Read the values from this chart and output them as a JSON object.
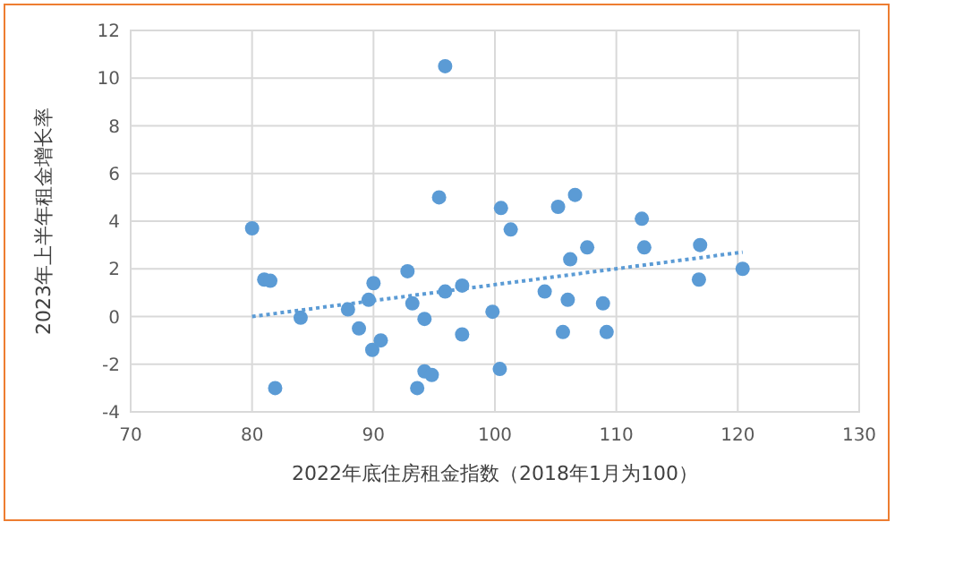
{
  "chart_data": {
    "type": "scatter",
    "xlabel": "2022年底住房租金指数（2018年1月为100）",
    "ylabel": "2023年上半年租金增长率",
    "xlim": [
      70,
      130
    ],
    "xticks": [
      70,
      80,
      90,
      100,
      110,
      120,
      130
    ],
    "ylim": [
      -4,
      12
    ],
    "yticks": [
      -4,
      -2,
      0,
      2,
      4,
      6,
      8,
      10,
      12
    ],
    "grid": true,
    "marker": "circle",
    "series": [
      {
        "type": "scatter",
        "color": "#5b9bd5",
        "x": [
          80.0,
          81.0,
          81.5,
          81.9,
          84.0,
          87.9,
          88.8,
          89.6,
          90.0,
          89.9,
          90.6,
          92.8,
          93.2,
          94.2,
          94.2,
          94.8,
          93.6,
          95.4,
          95.9,
          95.9,
          97.3,
          97.3,
          99.8,
          100.4,
          100.5,
          101.3,
          104.1,
          105.2,
          106.6,
          107.6,
          106.2,
          106.0,
          108.9,
          105.6,
          109.2,
          112.1,
          112.3,
          116.9,
          116.8,
          120.4
        ],
        "values": [
          3.7,
          1.55,
          1.5,
          -3.0,
          -0.05,
          0.3,
          -0.5,
          0.7,
          1.4,
          -1.4,
          -1.0,
          1.9,
          0.55,
          -0.1,
          -2.3,
          -2.45,
          -3.0,
          5.0,
          10.5,
          1.05,
          1.3,
          -0.75,
          0.2,
          -2.2,
          4.55,
          3.65,
          1.05,
          4.6,
          5.1,
          2.9,
          2.4,
          0.7,
          0.55,
          -0.65,
          -0.65,
          4.1,
          2.9,
          3.0,
          1.55,
          2.0
        ]
      },
      {
        "type": "line",
        "color": "#5b9bd5",
        "line_style": "dotted",
        "marker": "none",
        "x": [
          80,
          120.4
        ],
        "values": [
          0,
          2.7
        ]
      }
    ]
  }
}
